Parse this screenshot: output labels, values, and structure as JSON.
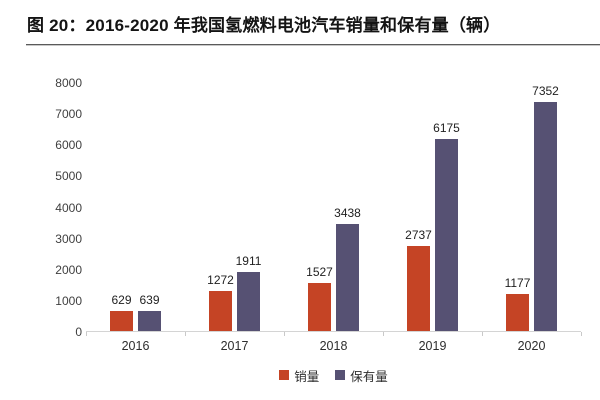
{
  "figure": {
    "title": "图 20：2016-2020 年我国氢燃料电池汽车销量和保有量（辆）"
  },
  "chart_data": {
    "type": "bar",
    "title": "图 20：2016-2020 年我国氢燃料电池汽车销量和保有量（辆）",
    "categories": [
      "2016",
      "2017",
      "2018",
      "2019",
      "2020"
    ],
    "series": [
      {
        "key": "sales",
        "name": "销量",
        "color": "#c54425",
        "values": [
          629,
          1272,
          1527,
          2737,
          1177
        ]
      },
      {
        "key": "ownership",
        "name": "保有量",
        "color": "#565173",
        "values": [
          639,
          1911,
          3438,
          6175,
          7352
        ]
      }
    ],
    "xlabel": "",
    "ylabel": "",
    "ylim": [
      0,
      8000
    ],
    "yticks": [
      0,
      1000,
      2000,
      3000,
      4000,
      5000,
      6000,
      7000,
      8000
    ],
    "grid": false,
    "legend_position": "bottom",
    "value_labels": true,
    "axis_line_color": "#d4d4d4"
  }
}
